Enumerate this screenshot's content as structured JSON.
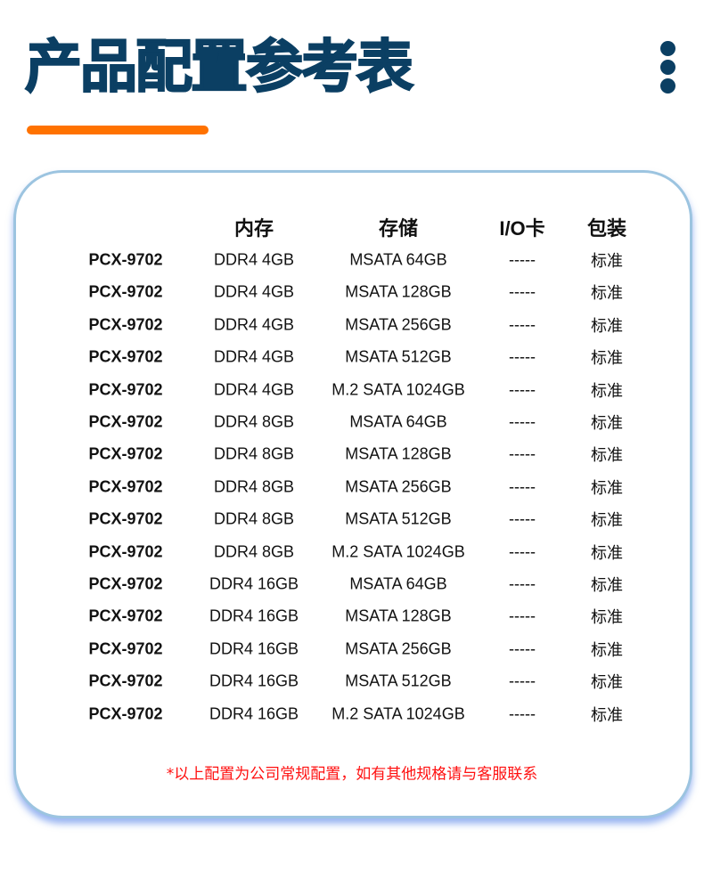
{
  "title": "产品配置参考表",
  "menu_icon": "vertical-dots-icon",
  "colors": {
    "title": "#0b3f63",
    "accent_bar": "#ff7200",
    "card_border": "#9cc4e0",
    "note": "#ff1010"
  },
  "table": {
    "headers": [
      "",
      "内存",
      "存储",
      "I/O卡",
      "包装"
    ],
    "rows": [
      [
        "PCX-9702",
        "DDR4 4GB",
        "MSATA 64GB",
        "-----",
        "标准"
      ],
      [
        "PCX-9702",
        "DDR4 4GB",
        "MSATA 128GB",
        "-----",
        "标准"
      ],
      [
        "PCX-9702",
        "DDR4 4GB",
        "MSATA 256GB",
        "-----",
        "标准"
      ],
      [
        "PCX-9702",
        "DDR4 4GB",
        "MSATA 512GB",
        "-----",
        "标准"
      ],
      [
        "PCX-9702",
        "DDR4 4GB",
        "M.2 SATA 1024GB",
        "-----",
        "标准"
      ],
      [
        "PCX-9702",
        "DDR4 8GB",
        "MSATA 64GB",
        "-----",
        "标准"
      ],
      [
        "PCX-9702",
        "DDR4 8GB",
        "MSATA 128GB",
        "-----",
        "标准"
      ],
      [
        "PCX-9702",
        "DDR4 8GB",
        "MSATA 256GB",
        "-----",
        "标准"
      ],
      [
        "PCX-9702",
        "DDR4 8GB",
        "MSATA 512GB",
        "-----",
        "标准"
      ],
      [
        "PCX-9702",
        "DDR4 8GB",
        "M.2 SATA 1024GB",
        "-----",
        "标准"
      ],
      [
        "PCX-9702",
        "DDR4 16GB",
        "MSATA 64GB",
        "-----",
        "标准"
      ],
      [
        "PCX-9702",
        "DDR4 16GB",
        "MSATA 128GB",
        "-----",
        "标准"
      ],
      [
        "PCX-9702",
        "DDR4 16GB",
        "MSATA 256GB",
        "-----",
        "标准"
      ],
      [
        "PCX-9702",
        "DDR4 16GB",
        "MSATA 512GB",
        "-----",
        "标准"
      ],
      [
        "PCX-9702",
        "DDR4 16GB",
        "M.2 SATA 1024GB",
        "-----",
        "标准"
      ]
    ]
  },
  "note": "*以上配置为公司常规配置，如有其他规格请与客服联系"
}
